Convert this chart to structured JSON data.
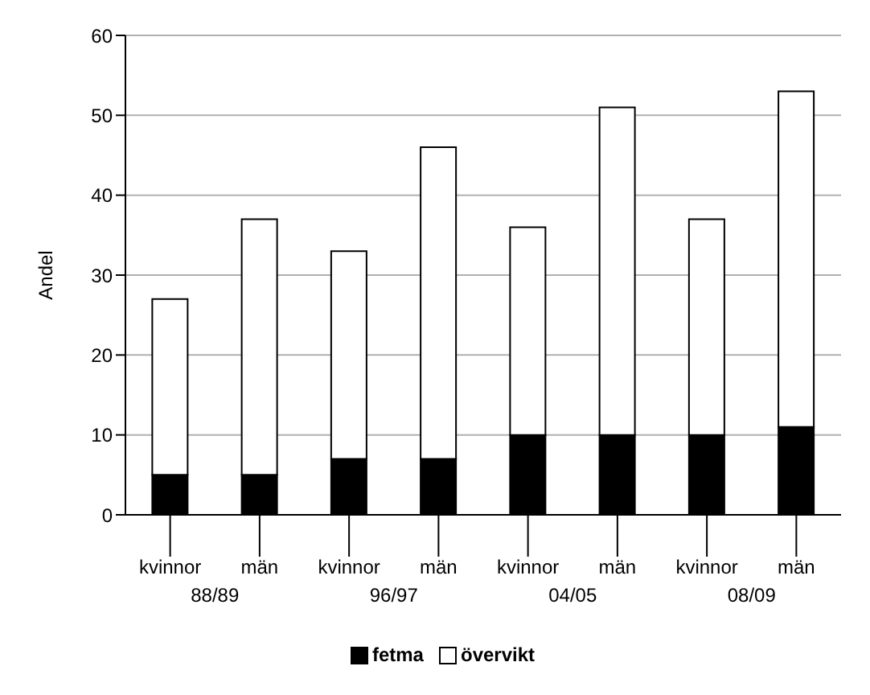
{
  "chart_data": {
    "type": "bar",
    "ylabel": "Andel",
    "categories": [
      "kvinnor",
      "män",
      "kvinnor",
      "män",
      "kvinnor",
      "män",
      "kvinnor",
      "män"
    ],
    "annotations": [
      "88/89",
      "96/97",
      "04/05",
      "08/09"
    ],
    "stacked": true,
    "series": [
      {
        "name": "fetma",
        "color": "#000000",
        "values": [
          5,
          5,
          7,
          7,
          10,
          10,
          10,
          11
        ]
      },
      {
        "name": "övervikt",
        "color": "#ffffff",
        "values": [
          22,
          32,
          26,
          39,
          26,
          41,
          27,
          42
        ]
      }
    ],
    "ylim": [
      0,
      60
    ],
    "yticks": [
      0,
      10,
      20,
      30,
      40,
      50,
      60
    ],
    "grid": "y",
    "legend": "bottom"
  }
}
